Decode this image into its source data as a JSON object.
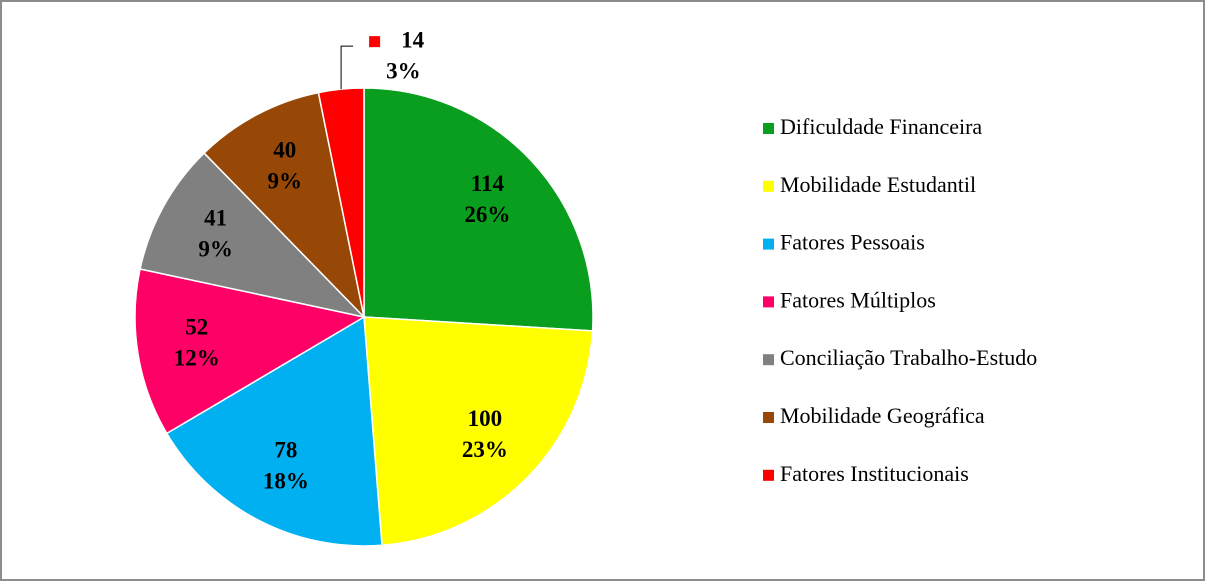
{
  "chart_data": {
    "type": "pie",
    "categories": [
      "Dificuldade Financeira",
      "Mobilidade Estudantil",
      "Fatores Pessoais",
      "Fatores Múltiplos",
      "Conciliação Trabalho-Estudo",
      "Mobilidade Geográfica",
      "Fatores Institucionais"
    ],
    "values": [
      114,
      100,
      78,
      52,
      41,
      40,
      14
    ],
    "value_labels": [
      "26%",
      "23%",
      "18%",
      "12%",
      "9%",
      "9%",
      "3%"
    ],
    "colors": [
      "#0a9e1e",
      "#ffff00",
      "#00b0f0",
      "#ff0066",
      "#808080",
      "#984806",
      "#ff0000"
    ],
    "legend": "right"
  }
}
